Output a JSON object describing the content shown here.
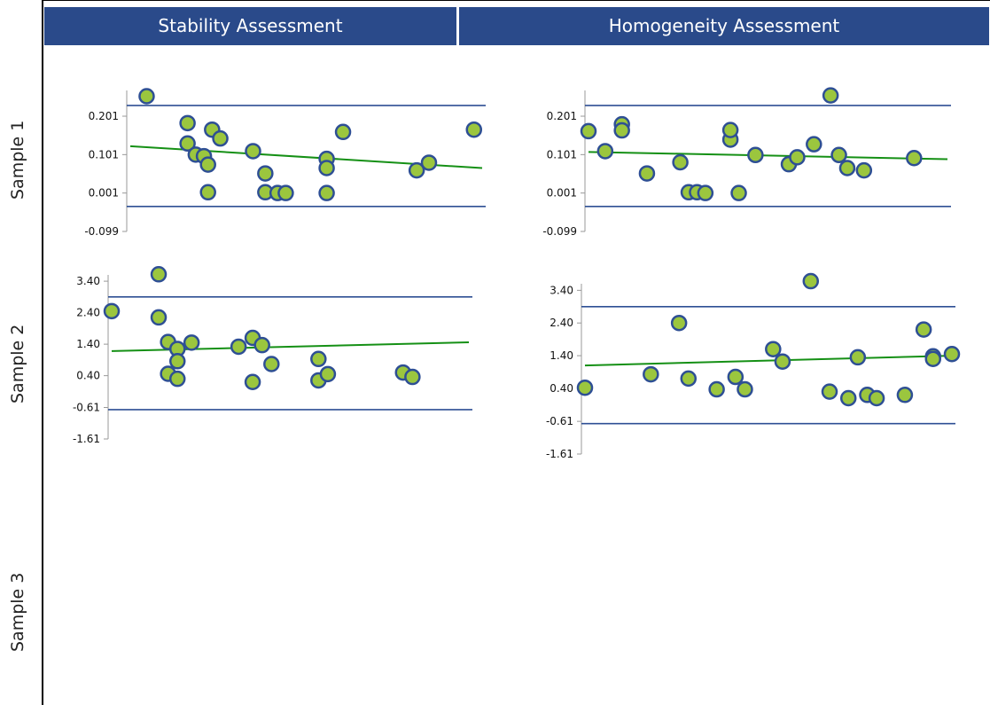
{
  "headers": {
    "stability": "Stability Assessment",
    "homogeneity": "Homogeneity Assessment"
  },
  "row_labels": [
    "Sample 1",
    "Sample 2",
    "Sample 3"
  ],
  "colors": {
    "header_bg": "#2a4a8a",
    "limit_line": "#2e4f94",
    "trend_line": "#159015",
    "point_fill": "#9bc63e",
    "point_stroke": "#2e4f94",
    "axis": "#999999"
  },
  "chart_data": [
    {
      "id": "stability-sample1",
      "type": "scatter",
      "title": "",
      "yticks": [
        "0.201",
        "0.101",
        "0.001",
        "-0.099"
      ],
      "ytick_values": [
        0.201,
        0.101,
        0.001,
        -0.099
      ],
      "ylim": [
        -0.099,
        0.268
      ],
      "xlim": [
        0,
        43
      ],
      "upper_limit": 0.229,
      "lower_limit": -0.034,
      "trend": [
        [
          0,
          0.123
        ],
        [
          43,
          0.066
        ]
      ],
      "x": [
        2,
        7,
        7,
        8,
        9,
        9.5,
        9.5,
        10,
        11,
        15,
        16.5,
        16.5,
        18,
        19,
        24,
        24,
        24,
        26,
        35,
        36.5,
        42
      ],
      "y": [
        0.253,
        0.183,
        0.13,
        0.101,
        0.097,
        0.075,
        0.003,
        0.166,
        0.143,
        0.11,
        0.003,
        0.052,
        0.001,
        0.001,
        0.09,
        0.066,
        0.001,
        0.16,
        0.06,
        0.08,
        0.166
      ]
    },
    {
      "id": "homogeneity-sample1",
      "type": "scatter",
      "title": "",
      "yticks": [
        "0.201",
        "0.101",
        "0.001",
        "-0.099"
      ],
      "ytick_values": [
        0.201,
        0.101,
        0.001,
        -0.099
      ],
      "ylim": [
        -0.099,
        0.268
      ],
      "xlim": [
        0,
        43
      ],
      "upper_limit": 0.229,
      "lower_limit": -0.034,
      "trend": [
        [
          0,
          0.108
        ],
        [
          43,
          0.089
        ]
      ],
      "x": [
        0,
        2,
        4,
        4,
        7,
        11,
        12,
        13,
        14,
        17,
        17,
        18,
        20,
        24,
        25,
        27,
        29,
        30,
        31,
        33,
        39
      ],
      "y": [
        0.162,
        0.11,
        0.18,
        0.164,
        0.052,
        0.081,
        0.003,
        0.003,
        0.001,
        0.14,
        0.165,
        0.001,
        0.1,
        0.076,
        0.094,
        0.128,
        0.255,
        0.1,
        0.066,
        0.06,
        0.092
      ]
    },
    {
      "id": "stability-sample2",
      "type": "scatter",
      "title": "",
      "yticks": [
        "3.40",
        "2.40",
        "1.40",
        "0.40",
        "-0.61",
        "-1.61"
      ],
      "ytick_values": [
        3.4,
        2.4,
        1.4,
        0.4,
        -0.61,
        -1.61
      ],
      "ylim": [
        -1.61,
        3.6
      ],
      "xlim": [
        0,
        38
      ],
      "upper_limit": 2.9,
      "lower_limit": -0.68,
      "trend": [
        [
          0,
          1.18
        ],
        [
          38,
          1.46
        ]
      ],
      "x": [
        0,
        5,
        5,
        6,
        6,
        7,
        7,
        7,
        8.5,
        13.5,
        15,
        15,
        16,
        17,
        22,
        22,
        23,
        31,
        32
      ],
      "y": [
        2.45,
        3.62,
        2.25,
        1.47,
        0.46,
        1.25,
        0.86,
        0.3,
        1.45,
        1.32,
        1.6,
        0.2,
        1.37,
        0.77,
        0.93,
        0.25,
        0.45,
        0.5,
        0.36
      ]
    },
    {
      "id": "homogeneity-sample2",
      "type": "scatter",
      "title": "",
      "yticks": [
        "3.40",
        "2.40",
        "1.40",
        "0.40",
        "-0.61",
        "-1.61"
      ],
      "ytick_values": [
        3.4,
        2.4,
        1.4,
        0.4,
        -0.61,
        -1.61
      ],
      "ylim": [
        -1.61,
        3.6
      ],
      "xlim": [
        0,
        39
      ],
      "upper_limit": 2.9,
      "lower_limit": -0.68,
      "trend": [
        [
          0,
          1.1
        ],
        [
          39,
          1.4
        ]
      ],
      "x": [
        0,
        7,
        10,
        11,
        14,
        16,
        17,
        20,
        21,
        24,
        26,
        28,
        29,
        30,
        31,
        34,
        36,
        37,
        37,
        39
      ],
      "y": [
        0.42,
        0.83,
        2.4,
        0.7,
        0.37,
        0.75,
        0.37,
        1.6,
        1.22,
        3.68,
        0.3,
        0.1,
        1.35,
        0.2,
        0.1,
        0.2,
        2.2,
        1.38,
        1.3,
        1.45
      ]
    }
  ]
}
